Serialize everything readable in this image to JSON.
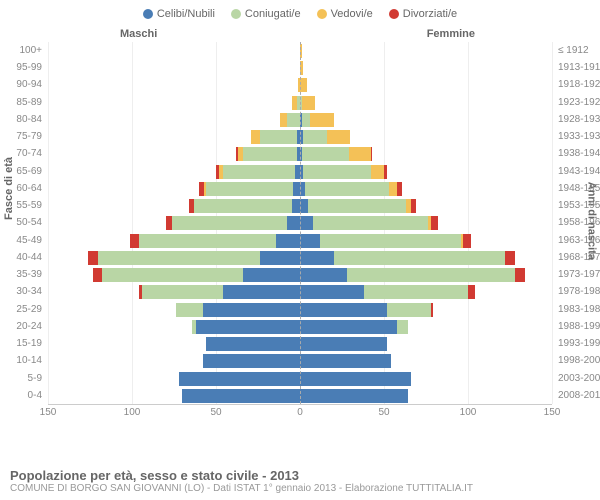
{
  "legend": [
    {
      "label": "Celibi/Nubili",
      "color": "#4a7db5"
    },
    {
      "label": "Coniugati/e",
      "color": "#b9d6a5"
    },
    {
      "label": "Vedovi/e",
      "color": "#f4c157"
    },
    {
      "label": "Divorziati/e",
      "color": "#d13a32"
    }
  ],
  "gender": {
    "left": "Maschi",
    "right": "Femmine"
  },
  "axis": {
    "left_label": "Fasce di età",
    "right_label": "Anni di nascita",
    "xmax": 150,
    "xticks": [
      150,
      100,
      50,
      0,
      50,
      100,
      150
    ]
  },
  "colors": {
    "single": "#4a7db5",
    "married": "#b9d6a5",
    "widowed": "#f4c157",
    "divorced": "#d13a32",
    "grid": "#eeeeee",
    "center": "#aaaaaa"
  },
  "rows": [
    {
      "age": "100+",
      "year": "≤ 1912",
      "m": [
        0,
        0,
        0,
        0
      ],
      "f": [
        0,
        0,
        1,
        0
      ]
    },
    {
      "age": "95-99",
      "year": "1913-1917",
      "m": [
        0,
        0,
        0,
        0
      ],
      "f": [
        0,
        0,
        2,
        0
      ]
    },
    {
      "age": "90-94",
      "year": "1918-1922",
      "m": [
        0,
        0,
        1,
        0
      ],
      "f": [
        0,
        0,
        4,
        0
      ]
    },
    {
      "age": "85-89",
      "year": "1923-1927",
      "m": [
        0,
        2,
        3,
        0
      ],
      "f": [
        0,
        1,
        8,
        0
      ]
    },
    {
      "age": "80-84",
      "year": "1928-1932",
      "m": [
        0,
        8,
        4,
        0
      ],
      "f": [
        1,
        5,
        14,
        0
      ]
    },
    {
      "age": "75-79",
      "year": "1933-1937",
      "m": [
        2,
        22,
        5,
        0
      ],
      "f": [
        2,
        14,
        14,
        0
      ]
    },
    {
      "age": "70-74",
      "year": "1938-1942",
      "m": [
        2,
        32,
        3,
        1
      ],
      "f": [
        1,
        28,
        13,
        1
      ]
    },
    {
      "age": "65-69",
      "year": "1943-1947",
      "m": [
        3,
        43,
        2,
        2
      ],
      "f": [
        2,
        40,
        8,
        2
      ]
    },
    {
      "age": "60-64",
      "year": "1948-1952",
      "m": [
        4,
        52,
        1,
        3
      ],
      "f": [
        3,
        50,
        5,
        3
      ]
    },
    {
      "age": "55-59",
      "year": "1953-1957",
      "m": [
        5,
        58,
        0,
        3
      ],
      "f": [
        5,
        58,
        3,
        3
      ]
    },
    {
      "age": "50-54",
      "year": "1958-1962",
      "m": [
        8,
        68,
        0,
        4
      ],
      "f": [
        8,
        68,
        2,
        4
      ]
    },
    {
      "age": "45-49",
      "year": "1963-1967",
      "m": [
        14,
        82,
        0,
        5
      ],
      "f": [
        12,
        84,
        1,
        5
      ]
    },
    {
      "age": "40-44",
      "year": "1968-1972",
      "m": [
        24,
        96,
        0,
        6
      ],
      "f": [
        20,
        102,
        0,
        6
      ]
    },
    {
      "age": "35-39",
      "year": "1973-1977",
      "m": [
        34,
        84,
        0,
        5
      ],
      "f": [
        28,
        100,
        0,
        6
      ]
    },
    {
      "age": "30-34",
      "year": "1978-1982",
      "m": [
        46,
        48,
        0,
        2
      ],
      "f": [
        38,
        62,
        0,
        4
      ]
    },
    {
      "age": "25-29",
      "year": "1983-1987",
      "m": [
        58,
        16,
        0,
        0
      ],
      "f": [
        52,
        26,
        0,
        1
      ]
    },
    {
      "age": "20-24",
      "year": "1988-1992",
      "m": [
        62,
        2,
        0,
        0
      ],
      "f": [
        58,
        6,
        0,
        0
      ]
    },
    {
      "age": "15-19",
      "year": "1993-1997",
      "m": [
        56,
        0,
        0,
        0
      ],
      "f": [
        52,
        0,
        0,
        0
      ]
    },
    {
      "age": "10-14",
      "year": "1998-2002",
      "m": [
        58,
        0,
        0,
        0
      ],
      "f": [
        54,
        0,
        0,
        0
      ]
    },
    {
      "age": "5-9",
      "year": "2003-2007",
      "m": [
        72,
        0,
        0,
        0
      ],
      "f": [
        66,
        0,
        0,
        0
      ]
    },
    {
      "age": "0-4",
      "year": "2008-2012",
      "m": [
        70,
        0,
        0,
        0
      ],
      "f": [
        64,
        0,
        0,
        0
      ]
    }
  ],
  "footer": {
    "title": "Popolazione per età, sesso e stato civile - 2013",
    "sub": "COMUNE DI BORGO SAN GIOVANNI (LO) - Dati ISTAT 1° gennaio 2013 - Elaborazione TUTTITALIA.IT"
  }
}
